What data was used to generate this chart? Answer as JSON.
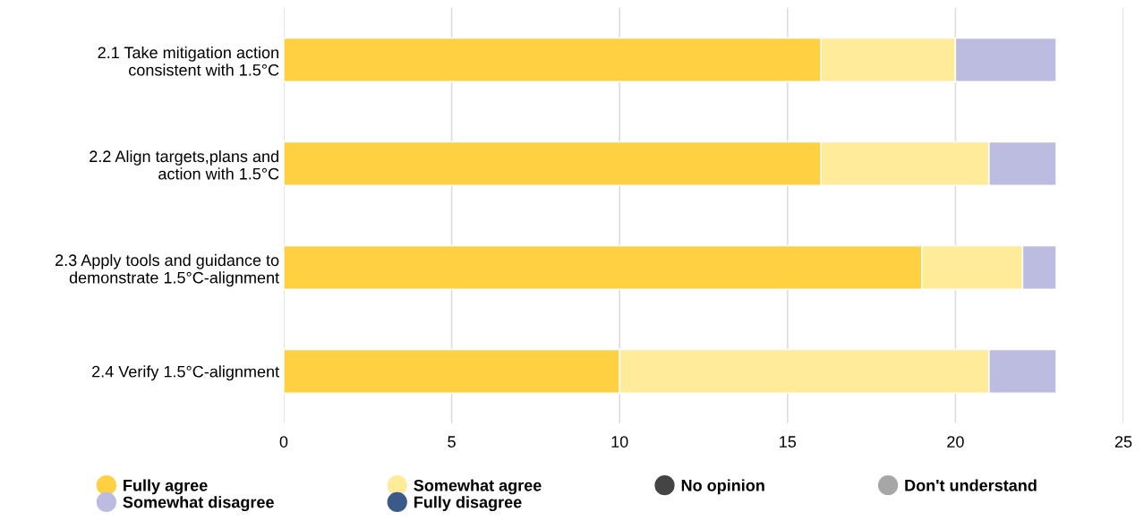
{
  "chart_data": {
    "type": "bar",
    "orientation": "horizontal",
    "stacked": true,
    "categories": [
      "2.1 Take mitigation action\nconsistent with 1.5°C",
      "2.2 Align targets,plans and\naction with 1.5°C",
      "2.3 Apply tools and guidance to\ndemonstrate 1.5°C-alignment",
      "2.4 Verify 1.5°C-alignment"
    ],
    "series": [
      {
        "name": "Fully agree",
        "color": "#ffd042",
        "values": [
          16,
          16,
          19,
          10
        ]
      },
      {
        "name": "Somewhat agree",
        "color": "#ffeb99",
        "values": [
          4,
          5,
          3,
          11
        ]
      },
      {
        "name": "No opinion",
        "color": "#444444",
        "values": [
          0,
          0,
          0,
          0
        ]
      },
      {
        "name": "Don't understand",
        "color": "#a6a6a6",
        "values": [
          0,
          0,
          0,
          0
        ]
      },
      {
        "name": "Somewhat disagree",
        "color": "#bcbce0",
        "values": [
          3,
          2,
          1,
          2
        ]
      },
      {
        "name": "Fully disagree",
        "color": "#3b5a8a",
        "values": [
          0,
          0,
          0,
          0
        ]
      }
    ],
    "xlim": [
      0,
      25
    ],
    "xticks": [
      0,
      5,
      10,
      15,
      20,
      25
    ],
    "grid": "x",
    "legend": "bottom",
    "marker": "circle"
  }
}
